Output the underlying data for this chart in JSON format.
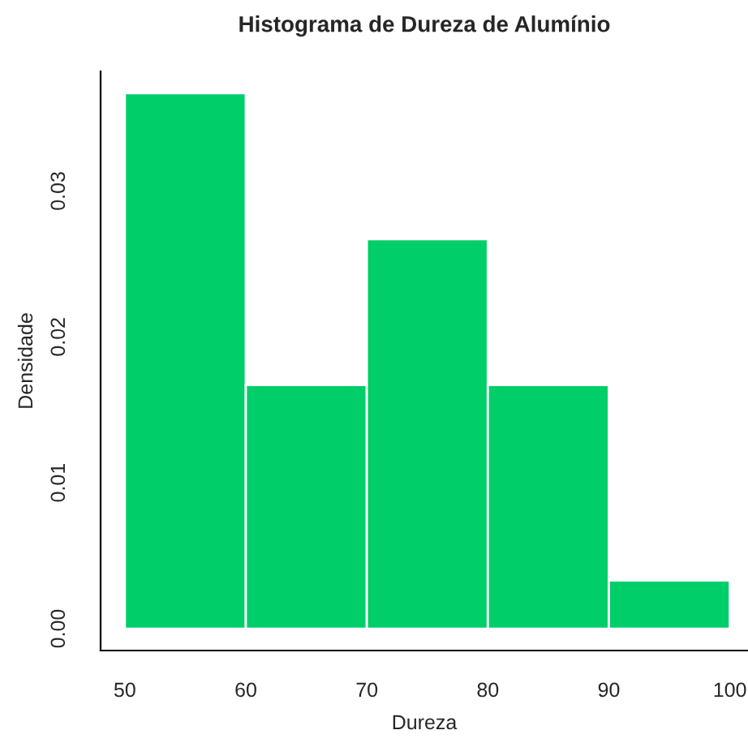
{
  "chart_data": {
    "type": "histogram",
    "title": "Histograma de Dureza de Alumínio",
    "xlabel": "Dureza",
    "ylabel": "Densidade",
    "bins": [
      50,
      60,
      70,
      80,
      90,
      100
    ],
    "values": [
      0.0367,
      0.0167,
      0.0267,
      0.0167,
      0.0033
    ],
    "color": "#00ce69",
    "xlim": [
      48,
      101.5
    ],
    "ylim": [
      -0.0015,
      0.0382
    ],
    "xticks": [
      50,
      60,
      70,
      80,
      90,
      100
    ],
    "yticks": [
      {
        "value": 0,
        "label": "0.00"
      },
      {
        "value": 0.01,
        "label": "0.01"
      },
      {
        "value": 0.02,
        "label": "0.02"
      },
      {
        "value": 0.03,
        "label": "0.03"
      }
    ],
    "grid": false,
    "legend": false
  }
}
